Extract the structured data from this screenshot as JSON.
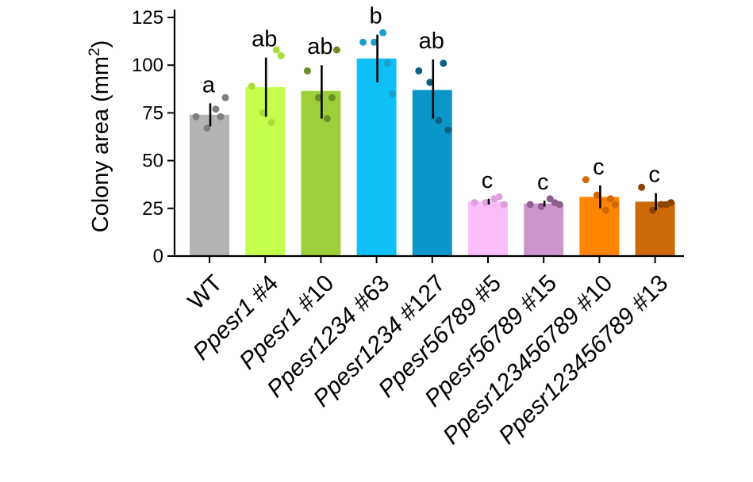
{
  "chart_data": {
    "type": "bar",
    "title": "",
    "ylabel": "Colony area (mm²)",
    "ylabel_main": "Colony area (mm",
    "ylabel_sup": "2",
    "ylabel_end": ")",
    "ylim": [
      0,
      125
    ],
    "yticks": [
      0,
      25,
      50,
      75,
      100,
      125
    ],
    "grid": false,
    "categories": [
      {
        "plain": "WT",
        "italic": ""
      },
      {
        "plain": " #4",
        "italic": "Ppesr1"
      },
      {
        "plain": " #10",
        "italic": "Ppesr1"
      },
      {
        "plain": " #63",
        "italic": "Ppesr1234"
      },
      {
        "plain": " #127",
        "italic": "Ppesr1234"
      },
      {
        "plain": " #5",
        "italic": "Ppesr56789"
      },
      {
        "plain": " #15",
        "italic": "Ppesr56789"
      },
      {
        "plain": " #10",
        "italic": "Ppesr123456789"
      },
      {
        "plain": " #13",
        "italic": "Ppesr123456789"
      }
    ],
    "values": [
      74,
      88.5,
      86.5,
      103.5,
      87,
      28.5,
      27.5,
      31,
      28.5
    ],
    "error_low": [
      68,
      73,
      72,
      91,
      72,
      27,
      26,
      25,
      24
    ],
    "error_high": [
      80,
      104,
      100,
      116,
      103,
      30,
      29,
      37,
      33
    ],
    "letters": [
      "a",
      "ab",
      "ab",
      "b",
      "ab",
      "c",
      "c",
      "c",
      "c"
    ],
    "colors": [
      "#b3b3b3",
      "#c4ff4d",
      "#9ecf3a",
      "#0ec0f5",
      "#0a96c8",
      "#fbbdfb",
      "#cc96cc",
      "#ff8400",
      "#cc6a0a"
    ],
    "point_colors": [
      "#7f7f7f",
      "#a8dd3a",
      "#6b8e23",
      "#1a9fcc",
      "#0a6080",
      "#e0a0e0",
      "#8e5e8e",
      "#d06800",
      "#8a4400"
    ],
    "points": [
      [
        73,
        67,
        77,
        73,
        83
      ],
      [
        89,
        75,
        70,
        108,
        105
      ],
      [
        97,
        83,
        72,
        83,
        108
      ],
      [
        112,
        112,
        117,
        101,
        85
      ],
      [
        97,
        91,
        71,
        101,
        66
      ],
      [
        28,
        28,
        30,
        31,
        27
      ],
      [
        27,
        26,
        30,
        28,
        27
      ],
      [
        40,
        32,
        24,
        30,
        27
      ],
      [
        36,
        24,
        27,
        27,
        28
      ]
    ]
  }
}
